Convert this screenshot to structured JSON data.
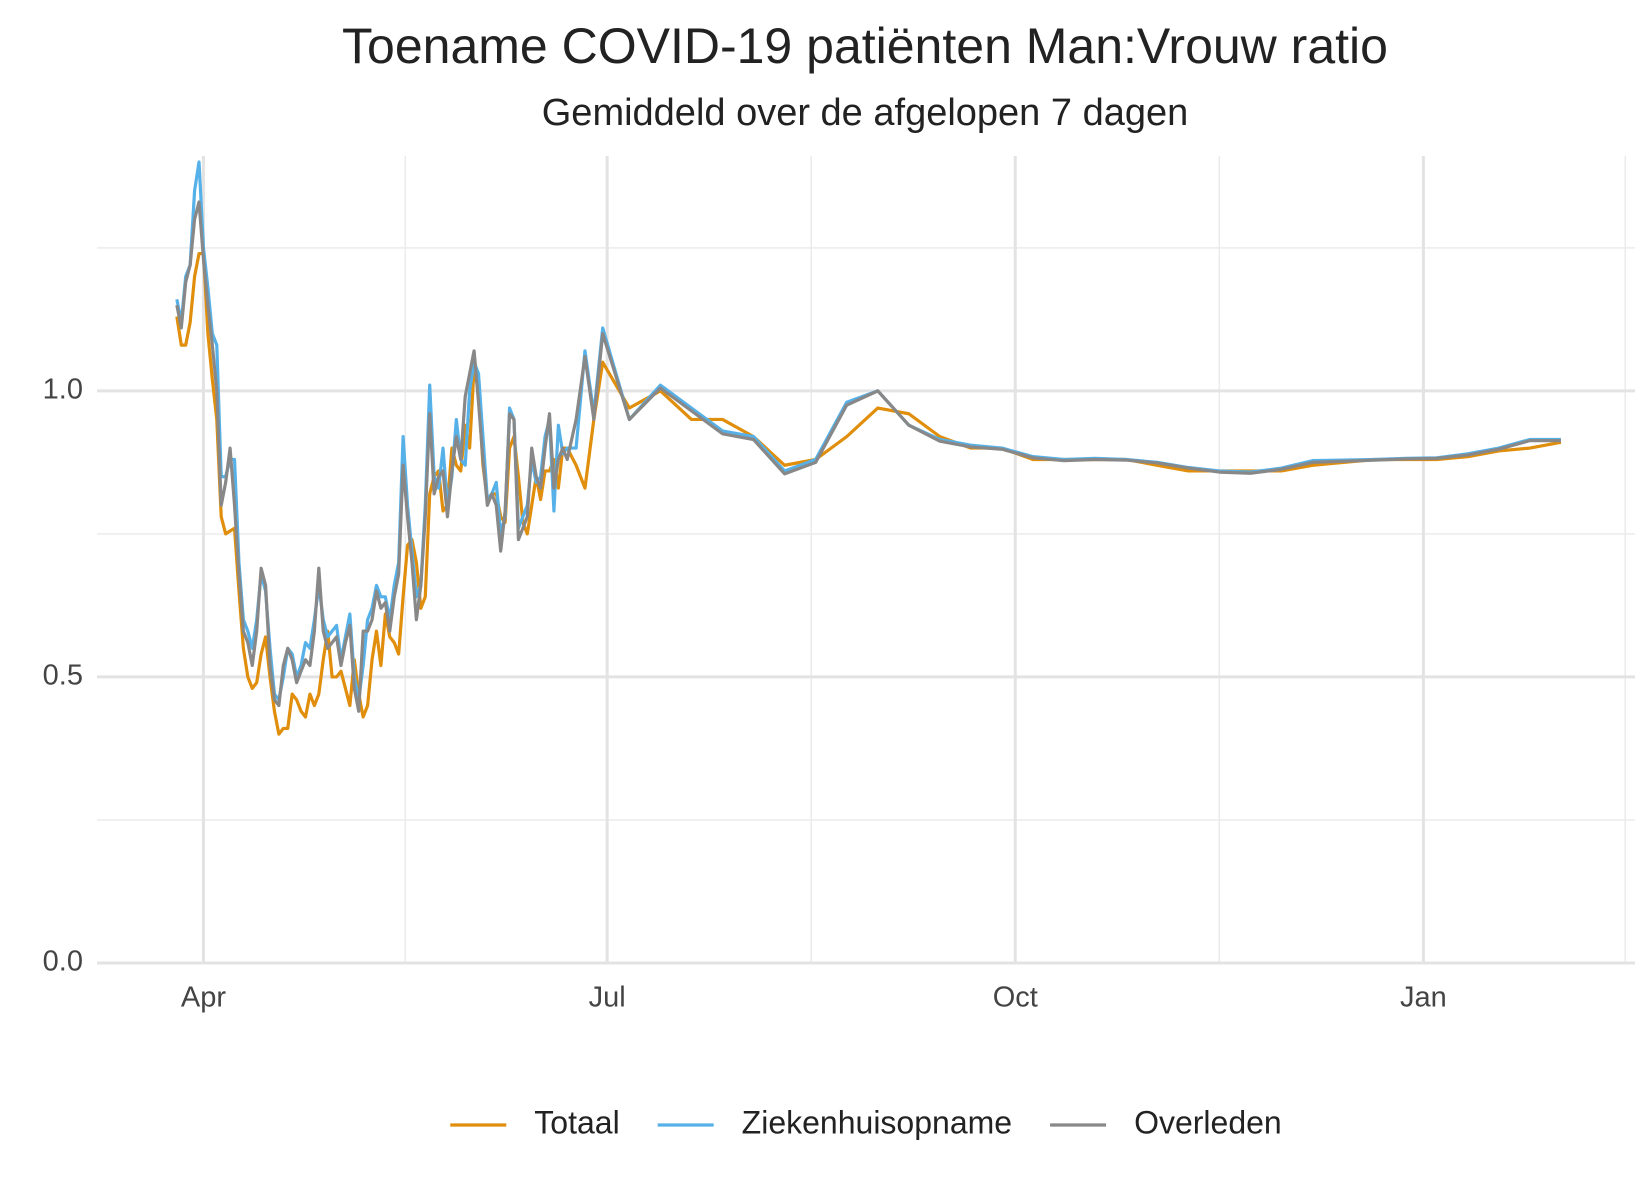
{
  "chart_data": {
    "type": "line",
    "title": "Toename COVID-19 patiënten Man:Vrouw ratio",
    "subtitle": "Gemiddeld over de afgelopen 7 dagen",
    "x": [
      -6,
      -5,
      -4,
      -3,
      -2,
      -1,
      0,
      1,
      2,
      3,
      4,
      5,
      6,
      7,
      8,
      9,
      10,
      11,
      12,
      13,
      14,
      15,
      16,
      17,
      18,
      19,
      20,
      21,
      22,
      23,
      24,
      25,
      26,
      27,
      28,
      29,
      30,
      31,
      32,
      33,
      34,
      35,
      36,
      37,
      38,
      39,
      40,
      41,
      42,
      43,
      44,
      45,
      46,
      47,
      48,
      49,
      50,
      51,
      52,
      53,
      54,
      55,
      56,
      57,
      58,
      59,
      60,
      61,
      62,
      63,
      64,
      65,
      66,
      67,
      68,
      69,
      70,
      71,
      72,
      73,
      74,
      75,
      76,
      77,
      78,
      79,
      80,
      81,
      82,
      84,
      86,
      88,
      90,
      96,
      103,
      110,
      117,
      124,
      131,
      138,
      145,
      152,
      159,
      166,
      173,
      180,
      187,
      194,
      201,
      208,
      215,
      222,
      229,
      236,
      243,
      250,
      257,
      264,
      271,
      278,
      285,
      292,
      299,
      306
    ],
    "series": [
      {
        "name": "Totaal",
        "color": "#E08E0B",
        "values": [
          1.13,
          1.08,
          1.08,
          1.12,
          1.2,
          1.24,
          1.24,
          1.1,
          1.02,
          0.95,
          0.78,
          0.75,
          0.755,
          0.76,
          0.65,
          0.55,
          0.5,
          0.48,
          0.49,
          0.54,
          0.57,
          0.5,
          0.44,
          0.4,
          0.41,
          0.41,
          0.47,
          0.46,
          0.44,
          0.43,
          0.47,
          0.45,
          0.47,
          0.53,
          0.58,
          0.5,
          0.5,
          0.51,
          0.48,
          0.45,
          0.53,
          0.47,
          0.43,
          0.45,
          0.53,
          0.58,
          0.52,
          0.61,
          0.57,
          0.56,
          0.54,
          0.64,
          0.73,
          0.74,
          0.7,
          0.62,
          0.64,
          0.82,
          0.85,
          0.86,
          0.79,
          0.8,
          0.9,
          0.87,
          0.86,
          0.94,
          0.9,
          1.04,
          1.0,
          0.87,
          0.81,
          0.82,
          0.82,
          0.78,
          0.77,
          0.9,
          0.92,
          0.85,
          0.77,
          0.75,
          0.8,
          0.85,
          0.81,
          0.86,
          0.86,
          0.88,
          0.83,
          0.9,
          0.9,
          0.87,
          0.83,
          0.95,
          1.05,
          0.97,
          1.0,
          0.95,
          0.95,
          0.92,
          0.87,
          0.88,
          0.92,
          0.97,
          0.96,
          0.92,
          0.9,
          0.9,
          0.88,
          0.88,
          0.88,
          0.88,
          0.87,
          0.86,
          0.86,
          0.86,
          0.86,
          0.87,
          0.875,
          0.88,
          0.88,
          0.88,
          0.885,
          0.895,
          0.9,
          0.91
        ]
      },
      {
        "name": "Ziekenhuisopname",
        "color": "#56B1E8",
        "values": [
          1.16,
          1.12,
          1.2,
          1.22,
          1.35,
          1.4,
          1.25,
          1.18,
          1.1,
          1.08,
          0.85,
          0.85,
          0.88,
          0.88,
          0.7,
          0.6,
          0.58,
          0.55,
          0.6,
          0.68,
          0.65,
          0.55,
          0.47,
          0.46,
          0.5,
          0.55,
          0.54,
          0.5,
          0.52,
          0.56,
          0.55,
          0.6,
          0.66,
          0.6,
          0.57,
          0.58,
          0.59,
          0.53,
          0.57,
          0.61,
          0.5,
          0.46,
          0.52,
          0.6,
          0.62,
          0.66,
          0.64,
          0.64,
          0.6,
          0.66,
          0.7,
          0.92,
          0.8,
          0.72,
          0.64,
          0.66,
          0.8,
          1.01,
          0.85,
          0.83,
          0.9,
          0.8,
          0.85,
          0.95,
          0.88,
          0.87,
          1.0,
          1.05,
          1.03,
          0.92,
          0.81,
          0.82,
          0.84,
          0.75,
          0.78,
          0.97,
          0.95,
          0.76,
          0.78,
          0.8,
          0.88,
          0.84,
          0.85,
          0.92,
          0.95,
          0.79,
          0.94,
          0.89,
          0.9,
          0.9,
          1.07,
          0.96,
          1.11,
          0.95,
          1.01,
          0.97,
          0.93,
          0.92,
          0.86,
          0.88,
          0.98,
          1.0,
          0.94,
          0.915,
          0.905,
          0.9,
          0.885,
          0.88,
          0.882,
          0.88,
          0.875,
          0.866,
          0.86,
          0.858,
          0.865,
          0.878,
          0.879,
          0.88,
          0.882,
          0.883,
          0.89,
          0.9,
          0.915,
          0.915
        ]
      },
      {
        "name": "Overleden",
        "color": "#888888",
        "values": [
          1.15,
          1.11,
          1.19,
          1.22,
          1.3,
          1.33,
          1.23,
          1.15,
          1.08,
          1.0,
          0.8,
          0.84,
          0.9,
          0.8,
          0.68,
          0.58,
          0.56,
          0.52,
          0.58,
          0.69,
          0.66,
          0.52,
          0.46,
          0.45,
          0.52,
          0.55,
          0.53,
          0.49,
          0.51,
          0.53,
          0.52,
          0.58,
          0.69,
          0.58,
          0.55,
          0.56,
          0.57,
          0.52,
          0.56,
          0.59,
          0.48,
          0.44,
          0.58,
          0.58,
          0.6,
          0.65,
          0.62,
          0.63,
          0.58,
          0.64,
          0.68,
          0.87,
          0.78,
          0.7,
          0.6,
          0.66,
          0.78,
          0.96,
          0.82,
          0.85,
          0.86,
          0.78,
          0.86,
          0.92,
          0.88,
          0.99,
          1.03,
          1.07,
          0.98,
          0.88,
          0.8,
          0.82,
          0.8,
          0.72,
          0.79,
          0.96,
          0.95,
          0.74,
          0.76,
          0.78,
          0.9,
          0.85,
          0.83,
          0.9,
          0.96,
          0.83,
          0.88,
          0.9,
          0.88,
          0.95,
          1.06,
          0.95,
          1.1,
          0.95,
          1.005,
          0.965,
          0.925,
          0.915,
          0.855,
          0.875,
          0.975,
          1.0,
          0.94,
          0.912,
          0.902,
          0.898,
          0.883,
          0.878,
          0.88,
          0.879,
          0.874,
          0.865,
          0.858,
          0.856,
          0.863,
          0.875,
          0.877,
          0.879,
          0.881,
          0.882,
          0.888,
          0.898,
          0.913,
          0.913
        ]
      }
    ],
    "xlim": [
      -24,
      322.7
    ],
    "xticks": [
      {
        "value": 0,
        "label": "Apr"
      },
      {
        "value": 91,
        "label": "Jul"
      },
      {
        "value": 183,
        "label": "Oct"
      },
      {
        "value": 275,
        "label": "Jan"
      }
    ],
    "xminorticks": [
      45.5,
      137,
      229,
      320.5
    ],
    "ylim": [
      0,
      1.4
    ],
    "yticks": [
      {
        "value": 0,
        "label": "0.0"
      },
      0.5,
      {
        "value": 1,
        "label": "1.0"
      }
    ],
    "yminorticks": [
      0.25,
      0.75,
      1.25
    ],
    "grid": true,
    "legend": "bottom"
  }
}
